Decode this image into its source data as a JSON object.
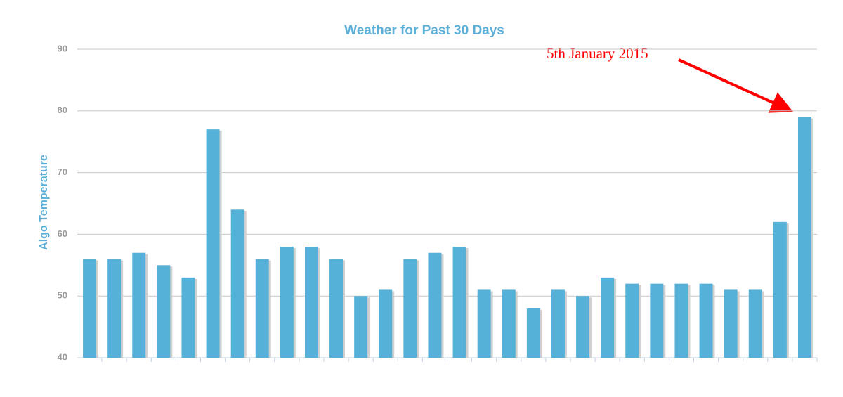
{
  "chart_data": {
    "type": "bar",
    "title": "Weather for Past 30 Days",
    "y_label": "Algo Temperature",
    "categories": [
      null,
      null,
      null,
      null,
      null,
      null,
      null,
      null,
      null,
      null,
      null,
      null,
      null,
      null,
      null,
      null,
      null,
      null,
      null,
      null,
      null,
      null,
      null,
      null,
      null,
      null,
      null,
      null,
      null,
      null
    ],
    "values": [
      56,
      56,
      57,
      55,
      53,
      77,
      64,
      56,
      58,
      58,
      56,
      50,
      51,
      56,
      57,
      58,
      51,
      51,
      48,
      51,
      50,
      53,
      52,
      52,
      52,
      52,
      51,
      51,
      62,
      79
    ],
    "color": "#55b1d8",
    "ylim": [
      40,
      90
    ],
    "yticks": [
      40,
      50,
      60,
      70,
      80,
      90
    ],
    "grid": true,
    "annotations": [
      {
        "text": "5th January 2015"
      }
    ]
  }
}
